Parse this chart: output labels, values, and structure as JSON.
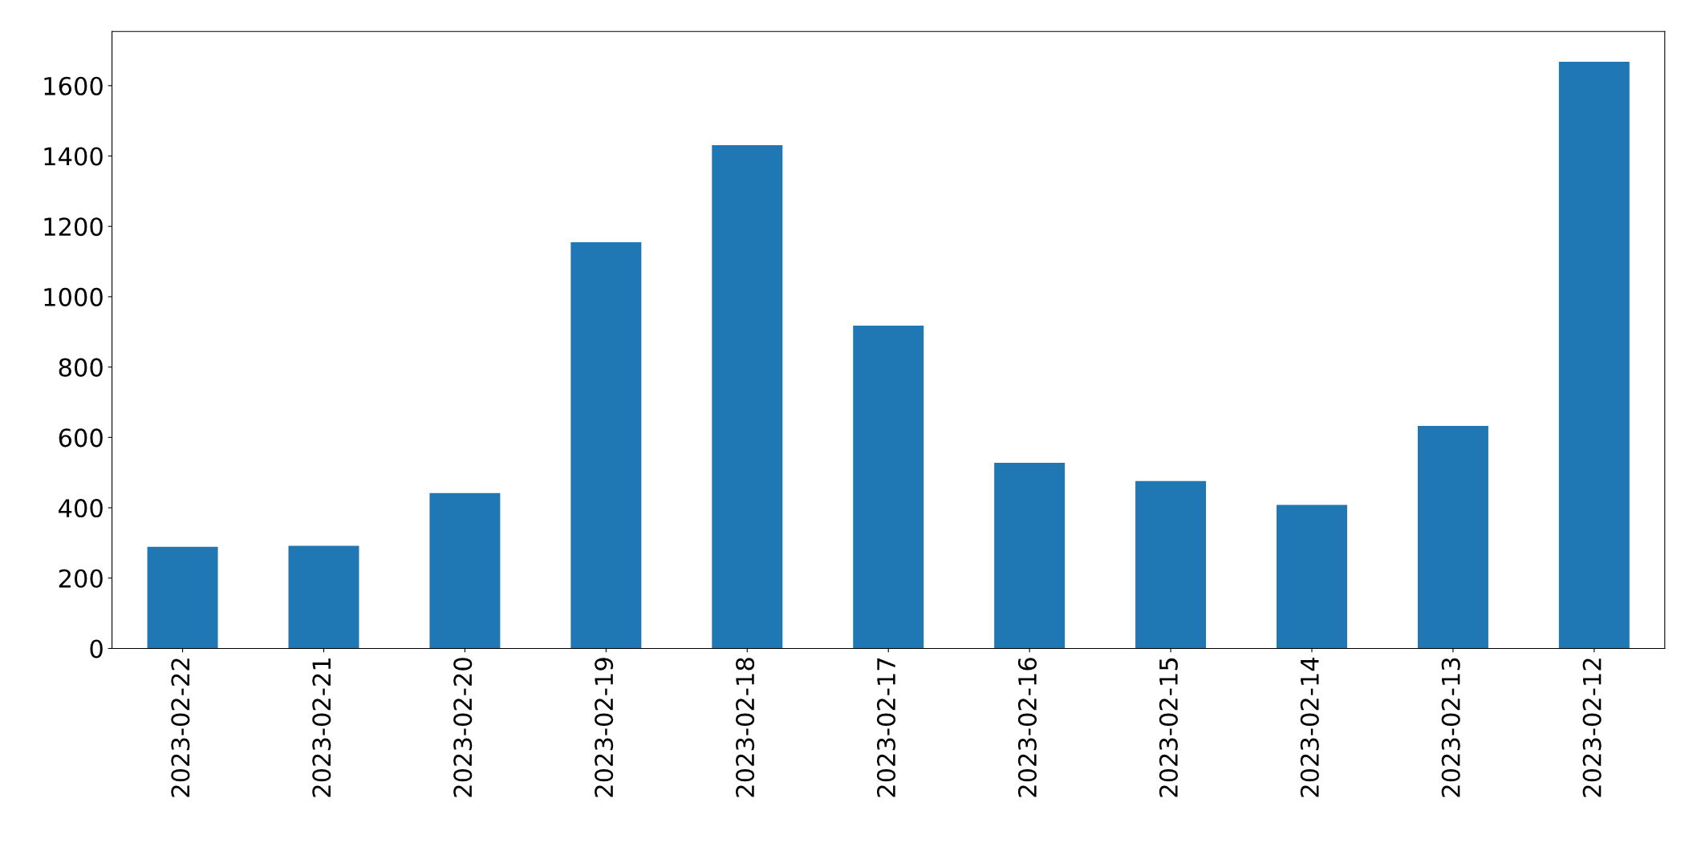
{
  "chart_data": {
    "type": "bar",
    "categories": [
      "2023-02-22",
      "2023-02-21",
      "2023-02-20",
      "2023-02-19",
      "2023-02-18",
      "2023-02-17",
      "2023-02-16",
      "2023-02-15",
      "2023-02-14",
      "2023-02-13",
      "2023-02-12"
    ],
    "values": [
      289,
      292,
      442,
      1155,
      1431,
      918,
      528,
      476,
      408,
      633,
      1668
    ],
    "color": "#1f77b4",
    "ylim": [
      0,
      1754
    ],
    "yticks": [
      0,
      200,
      400,
      600,
      800,
      1000,
      1200,
      1400,
      1600
    ],
    "grid": false
  }
}
